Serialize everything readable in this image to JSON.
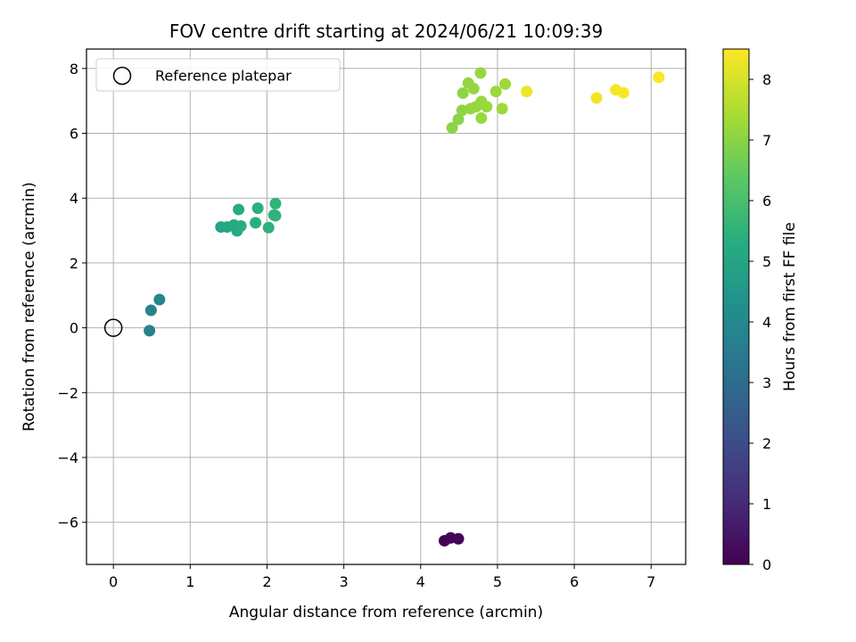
{
  "chart_data": {
    "type": "scatter",
    "title": "FOV centre drift starting at 2024/06/21 10:09:39",
    "xlabel": "Angular distance from reference (arcmin)",
    "ylabel": "Rotation from reference (arcmin)",
    "xlim": [
      -0.35,
      7.45
    ],
    "ylim": [
      -7.3,
      8.6
    ],
    "xticks": [
      0,
      1,
      2,
      3,
      4,
      5,
      6,
      7
    ],
    "yticks": [
      -6,
      -4,
      -2,
      0,
      2,
      4,
      6,
      8
    ],
    "xtick_labels": [
      "0",
      "1",
      "2",
      "3",
      "4",
      "5",
      "6",
      "7"
    ],
    "ytick_labels": [
      "−6",
      "−4",
      "−2",
      "0",
      "2",
      "4",
      "6",
      "8"
    ],
    "grid": true,
    "legend": {
      "placement": "top-left",
      "entries": [
        "Reference platepar"
      ]
    },
    "reference_point": {
      "name": "Reference platepar",
      "x": 0,
      "y": 0
    },
    "colorbar": {
      "label": "Hours from first FF file",
      "colormap": "viridis",
      "range": [
        0,
        8.5
      ],
      "ticks": [
        0,
        1,
        2,
        3,
        4,
        5,
        6,
        7,
        8
      ],
      "tick_labels": [
        "0",
        "1",
        "2",
        "3",
        "4",
        "5",
        "6",
        "7",
        "8"
      ]
    },
    "points": [
      {
        "x": 4.31,
        "y": -6.57,
        "hours": 0.0
      },
      {
        "x": 4.39,
        "y": -6.48,
        "hours": 0.05
      },
      {
        "x": 4.49,
        "y": -6.51,
        "hours": 0.1
      },
      {
        "x": 0.47,
        "y": -0.09,
        "hours": 3.75
      },
      {
        "x": 0.49,
        "y": 0.54,
        "hours": 3.85
      },
      {
        "x": 0.6,
        "y": 0.87,
        "hours": 3.9
      },
      {
        "x": 1.4,
        "y": 3.11,
        "hours": 5.05
      },
      {
        "x": 1.48,
        "y": 3.11,
        "hours": 5.1
      },
      {
        "x": 1.57,
        "y": 3.17,
        "hours": 5.15
      },
      {
        "x": 1.61,
        "y": 2.99,
        "hours": 5.2
      },
      {
        "x": 1.63,
        "y": 3.65,
        "hours": 5.25
      },
      {
        "x": 1.66,
        "y": 3.14,
        "hours": 5.3
      },
      {
        "x": 1.85,
        "y": 3.24,
        "hours": 5.35
      },
      {
        "x": 1.88,
        "y": 3.69,
        "hours": 5.4
      },
      {
        "x": 2.02,
        "y": 3.09,
        "hours": 5.45
      },
      {
        "x": 2.09,
        "y": 3.48,
        "hours": 5.5
      },
      {
        "x": 2.11,
        "y": 3.46,
        "hours": 5.52
      },
      {
        "x": 2.11,
        "y": 3.83,
        "hours": 5.55
      },
      {
        "x": 4.41,
        "y": 6.17,
        "hours": 7.0
      },
      {
        "x": 4.49,
        "y": 6.43,
        "hours": 7.02
      },
      {
        "x": 4.54,
        "y": 6.71,
        "hours": 7.04
      },
      {
        "x": 4.55,
        "y": 7.24,
        "hours": 7.06
      },
      {
        "x": 4.62,
        "y": 7.55,
        "hours": 7.08
      },
      {
        "x": 4.65,
        "y": 6.76,
        "hours": 7.1
      },
      {
        "x": 4.69,
        "y": 7.38,
        "hours": 7.12
      },
      {
        "x": 4.72,
        "y": 6.82,
        "hours": 7.14
      },
      {
        "x": 4.78,
        "y": 7.86,
        "hours": 7.16
      },
      {
        "x": 4.79,
        "y": 6.98,
        "hours": 7.18
      },
      {
        "x": 4.79,
        "y": 6.47,
        "hours": 7.2
      },
      {
        "x": 4.86,
        "y": 6.82,
        "hours": 7.22
      },
      {
        "x": 4.98,
        "y": 7.29,
        "hours": 7.24
      },
      {
        "x": 5.06,
        "y": 6.76,
        "hours": 7.26
      },
      {
        "x": 5.1,
        "y": 7.52,
        "hours": 7.28
      },
      {
        "x": 5.38,
        "y": 7.29,
        "hours": 8.3
      },
      {
        "x": 6.29,
        "y": 7.09,
        "hours": 8.35
      },
      {
        "x": 6.54,
        "y": 7.34,
        "hours": 8.4
      },
      {
        "x": 6.64,
        "y": 7.25,
        "hours": 8.42
      },
      {
        "x": 7.1,
        "y": 7.73,
        "hours": 8.45
      }
    ],
    "colors": {
      "grid": "#b0b0b0",
      "axes": "#000000",
      "legend_border": "#cccccc"
    }
  }
}
